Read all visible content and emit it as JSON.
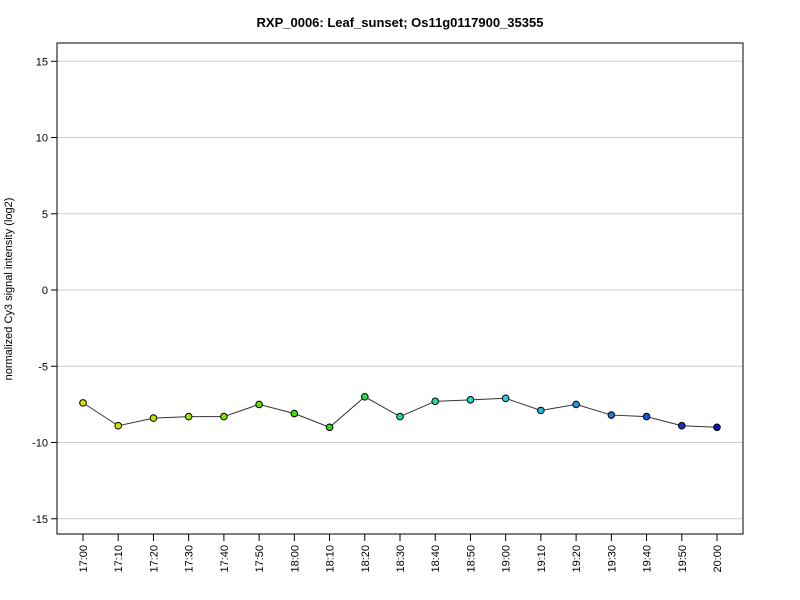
{
  "chart_data": {
    "type": "line",
    "title": "RXP_0006: Leaf_sunset; Os11g0117900_35355",
    "xlabel": "",
    "ylabel": "normalized Cy3 signal intensity (log2)",
    "ylim": [
      -16,
      16.2
    ],
    "yticks": [
      -15,
      -10,
      -5,
      0,
      5,
      10,
      15
    ],
    "ytick_labels": [
      "-15",
      "-10",
      "-5",
      "0",
      "5",
      "10",
      "15"
    ],
    "grid": "horizontal",
    "legend": "none",
    "categories": [
      "17:00",
      "17:10",
      "17:20",
      "17:30",
      "17:40",
      "17:50",
      "18:00",
      "18:10",
      "18:20",
      "18:30",
      "18:40",
      "18:50",
      "19:00",
      "19:10",
      "19:20",
      "19:30",
      "19:40",
      "19:50",
      "20:00"
    ],
    "series": [
      {
        "values": [
          -7.4,
          -8.9,
          -8.4,
          -8.3,
          -8.3,
          -7.5,
          -8.1,
          -9.0,
          -7.0,
          -8.3,
          -7.3,
          -7.2,
          -7.1,
          -7.9,
          -7.5,
          -8.2,
          -8.3,
          -8.9,
          -9.0
        ],
        "line_color": "#333333",
        "marker_colors": [
          "#dddd00",
          "#d6e000",
          "#bce300",
          "#a8e300",
          "#88e000",
          "#66dd00",
          "#44dd00",
          "#22dd22",
          "#22dd55",
          "#22dd88",
          "#22ddaa",
          "#22ddcc",
          "#22d6dd",
          "#22bbdd",
          "#2299dd",
          "#2277dd",
          "#1155dd",
          "#1133cc",
          "#1111bb"
        ]
      }
    ]
  }
}
